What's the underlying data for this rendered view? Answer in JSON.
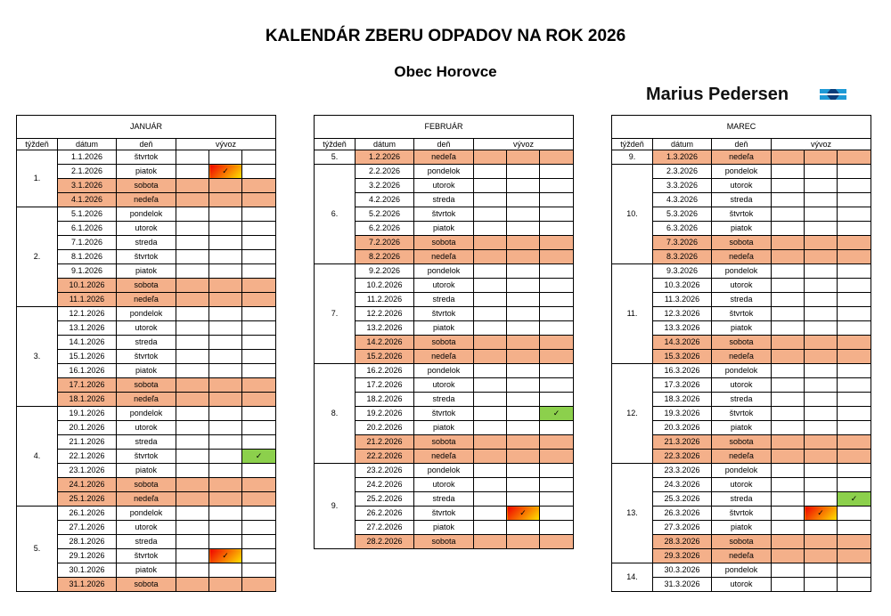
{
  "header": {
    "title": "KALENDÁR ZBERU ODPADOV NA ROK 2026",
    "subtitle": "Obec Horovce",
    "brand": "Marius Pedersen",
    "logo_colors": [
      "#1e9ad6",
      "#0a3d7a"
    ]
  },
  "columns": {
    "week": "týždeň",
    "date": "dátum",
    "day": "deň",
    "collection": "vývoz"
  },
  "mark_symbol": "✓",
  "colors": {
    "weekend": "#f4b08a",
    "green": "#8cd04c",
    "orange_gradient": [
      "#f00000",
      "#ffe600"
    ]
  },
  "months": [
    {
      "name": "JANUÁR",
      "weeks": [
        {
          "label": "1.",
          "days": [
            {
              "d": "1.1.2026",
              "n": "štvrtok"
            },
            {
              "d": "2.1.2026",
              "n": "piatok",
              "m": {
                "col": 1,
                "type": "orange"
              }
            },
            {
              "d": "3.1.2026",
              "n": "sobota",
              "w": 1
            },
            {
              "d": "4.1.2026",
              "n": "nedeľa",
              "w": 1
            }
          ]
        },
        {
          "label": "2.",
          "days": [
            {
              "d": "5.1.2026",
              "n": "pondelok"
            },
            {
              "d": "6.1.2026",
              "n": "utorok"
            },
            {
              "d": "7.1.2026",
              "n": "streda"
            },
            {
              "d": "8.1.2026",
              "n": "štvrtok"
            },
            {
              "d": "9.1.2026",
              "n": "piatok"
            },
            {
              "d": "10.1.2026",
              "n": "sobota",
              "w": 1
            },
            {
              "d": "11.1.2026",
              "n": "nedeľa",
              "w": 1
            }
          ]
        },
        {
          "label": "3.",
          "days": [
            {
              "d": "12.1.2026",
              "n": "pondelok"
            },
            {
              "d": "13.1.2026",
              "n": "utorok"
            },
            {
              "d": "14.1.2026",
              "n": "streda"
            },
            {
              "d": "15.1.2026",
              "n": "štvrtok"
            },
            {
              "d": "16.1.2026",
              "n": "piatok"
            },
            {
              "d": "17.1.2026",
              "n": "sobota",
              "w": 1
            },
            {
              "d": "18.1.2026",
              "n": "nedeľa",
              "w": 1
            }
          ]
        },
        {
          "label": "4.",
          "days": [
            {
              "d": "19.1.2026",
              "n": "pondelok"
            },
            {
              "d": "20.1.2026",
              "n": "utorok"
            },
            {
              "d": "21.1.2026",
              "n": "streda"
            },
            {
              "d": "22.1.2026",
              "n": "štvrtok",
              "m": {
                "col": 2,
                "type": "green"
              }
            },
            {
              "d": "23.1.2026",
              "n": "piatok"
            },
            {
              "d": "24.1.2026",
              "n": "sobota",
              "w": 1
            },
            {
              "d": "25.1.2026",
              "n": "nedeľa",
              "w": 1
            }
          ]
        },
        {
          "label": "5.",
          "days": [
            {
              "d": "26.1.2026",
              "n": "pondelok"
            },
            {
              "d": "27.1.2026",
              "n": "utorok"
            },
            {
              "d": "28.1.2026",
              "n": "streda"
            },
            {
              "d": "29.1.2026",
              "n": "štvrtok",
              "m": {
                "col": 1,
                "type": "orange"
              }
            },
            {
              "d": "30.1.2026",
              "n": "piatok"
            },
            {
              "d": "31.1.2026",
              "n": "sobota",
              "w": 1
            }
          ]
        }
      ]
    },
    {
      "name": "FEBRUÁR",
      "weeks": [
        {
          "label": "5.",
          "days": [
            {
              "d": "1.2.2026",
              "n": "nedeľa",
              "w": 1
            }
          ]
        },
        {
          "label": "6.",
          "days": [
            {
              "d": "2.2.2026",
              "n": "pondelok"
            },
            {
              "d": "3.2.2026",
              "n": "utorok"
            },
            {
              "d": "4.2.2026",
              "n": "streda"
            },
            {
              "d": "5.2.2026",
              "n": "štvrtok"
            },
            {
              "d": "6.2.2026",
              "n": "piatok"
            },
            {
              "d": "7.2.2026",
              "n": "sobota",
              "w": 1
            },
            {
              "d": "8.2.2026",
              "n": "nedeľa",
              "w": 1
            }
          ]
        },
        {
          "label": "7.",
          "days": [
            {
              "d": "9.2.2026",
              "n": "pondelok"
            },
            {
              "d": "10.2.2026",
              "n": "utorok"
            },
            {
              "d": "11.2.2026",
              "n": "streda"
            },
            {
              "d": "12.2.2026",
              "n": "štvrtok"
            },
            {
              "d": "13.2.2026",
              "n": "piatok"
            },
            {
              "d": "14.2.2026",
              "n": "sobota",
              "w": 1
            },
            {
              "d": "15.2.2026",
              "n": "nedeľa",
              "w": 1
            }
          ]
        },
        {
          "label": "8.",
          "days": [
            {
              "d": "16.2.2026",
              "n": "pondelok"
            },
            {
              "d": "17.2.2026",
              "n": "utorok"
            },
            {
              "d": "18.2.2026",
              "n": "streda"
            },
            {
              "d": "19.2.2026",
              "n": "štvrtok",
              "m": {
                "col": 2,
                "type": "green"
              }
            },
            {
              "d": "20.2.2026",
              "n": "piatok"
            },
            {
              "d": "21.2.2026",
              "n": "sobota",
              "w": 1
            },
            {
              "d": "22.2.2026",
              "n": "nedeľa",
              "w": 1
            }
          ]
        },
        {
          "label": "9.",
          "days": [
            {
              "d": "23.2.2026",
              "n": "pondelok"
            },
            {
              "d": "24.2.2026",
              "n": "utorok"
            },
            {
              "d": "25.2.2026",
              "n": "streda"
            },
            {
              "d": "26.2.2026",
              "n": "štvrtok",
              "m": {
                "col": 1,
                "type": "orange"
              }
            },
            {
              "d": "27.2.2026",
              "n": "piatok"
            },
            {
              "d": "28.2.2026",
              "n": "sobota",
              "w": 1
            }
          ]
        }
      ]
    },
    {
      "name": "MAREC",
      "weeks": [
        {
          "label": "9.",
          "days": [
            {
              "d": "1.3.2026",
              "n": "nedeľa",
              "w": 1
            }
          ]
        },
        {
          "label": "10.",
          "days": [
            {
              "d": "2.3.2026",
              "n": "pondelok"
            },
            {
              "d": "3.3.2026",
              "n": "utorok"
            },
            {
              "d": "4.3.2026",
              "n": "streda"
            },
            {
              "d": "5.3.2026",
              "n": "štvrtok"
            },
            {
              "d": "6.3.2026",
              "n": "piatok"
            },
            {
              "d": "7.3.2026",
              "n": "sobota",
              "w": 1
            },
            {
              "d": "8.3.2026",
              "n": "nedeľa",
              "w": 1
            }
          ]
        },
        {
          "label": "11.",
          "days": [
            {
              "d": "9.3.2026",
              "n": "pondelok"
            },
            {
              "d": "10.3.2026",
              "n": "utorok"
            },
            {
              "d": "11.3.2026",
              "n": "streda"
            },
            {
              "d": "12.3.2026",
              "n": "štvrtok"
            },
            {
              "d": "13.3.2026",
              "n": "piatok"
            },
            {
              "d": "14.3.2026",
              "n": "sobota",
              "w": 1
            },
            {
              "d": "15.3.2026",
              "n": "nedeľa",
              "w": 1
            }
          ]
        },
        {
          "label": "12.",
          "days": [
            {
              "d": "16.3.2026",
              "n": "pondelok"
            },
            {
              "d": "17.3.2026",
              "n": "utorok"
            },
            {
              "d": "18.3.2026",
              "n": "streda"
            },
            {
              "d": "19.3.2026",
              "n": "štvrtok"
            },
            {
              "d": "20.3.2026",
              "n": "piatok"
            },
            {
              "d": "21.3.2026",
              "n": "sobota",
              "w": 1
            },
            {
              "d": "22.3.2026",
              "n": "nedeľa",
              "w": 1
            }
          ]
        },
        {
          "label": "13.",
          "days": [
            {
              "d": "23.3.2026",
              "n": "pondelok"
            },
            {
              "d": "24.3.2026",
              "n": "utorok"
            },
            {
              "d": "25.3.2026",
              "n": "streda",
              "m": {
                "col": 2,
                "type": "green"
              }
            },
            {
              "d": "26.3.2026",
              "n": "štvrtok",
              "m": {
                "col": 1,
                "type": "orange"
              }
            },
            {
              "d": "27.3.2026",
              "n": "piatok"
            },
            {
              "d": "28.3.2026",
              "n": "sobota",
              "w": 1
            },
            {
              "d": "29.3.2026",
              "n": "nedeľa",
              "w": 1
            }
          ]
        },
        {
          "label": "14.",
          "days": [
            {
              "d": "30.3.2026",
              "n": "pondelok"
            },
            {
              "d": "31.3.2026",
              "n": "utorok"
            }
          ]
        }
      ]
    }
  ]
}
